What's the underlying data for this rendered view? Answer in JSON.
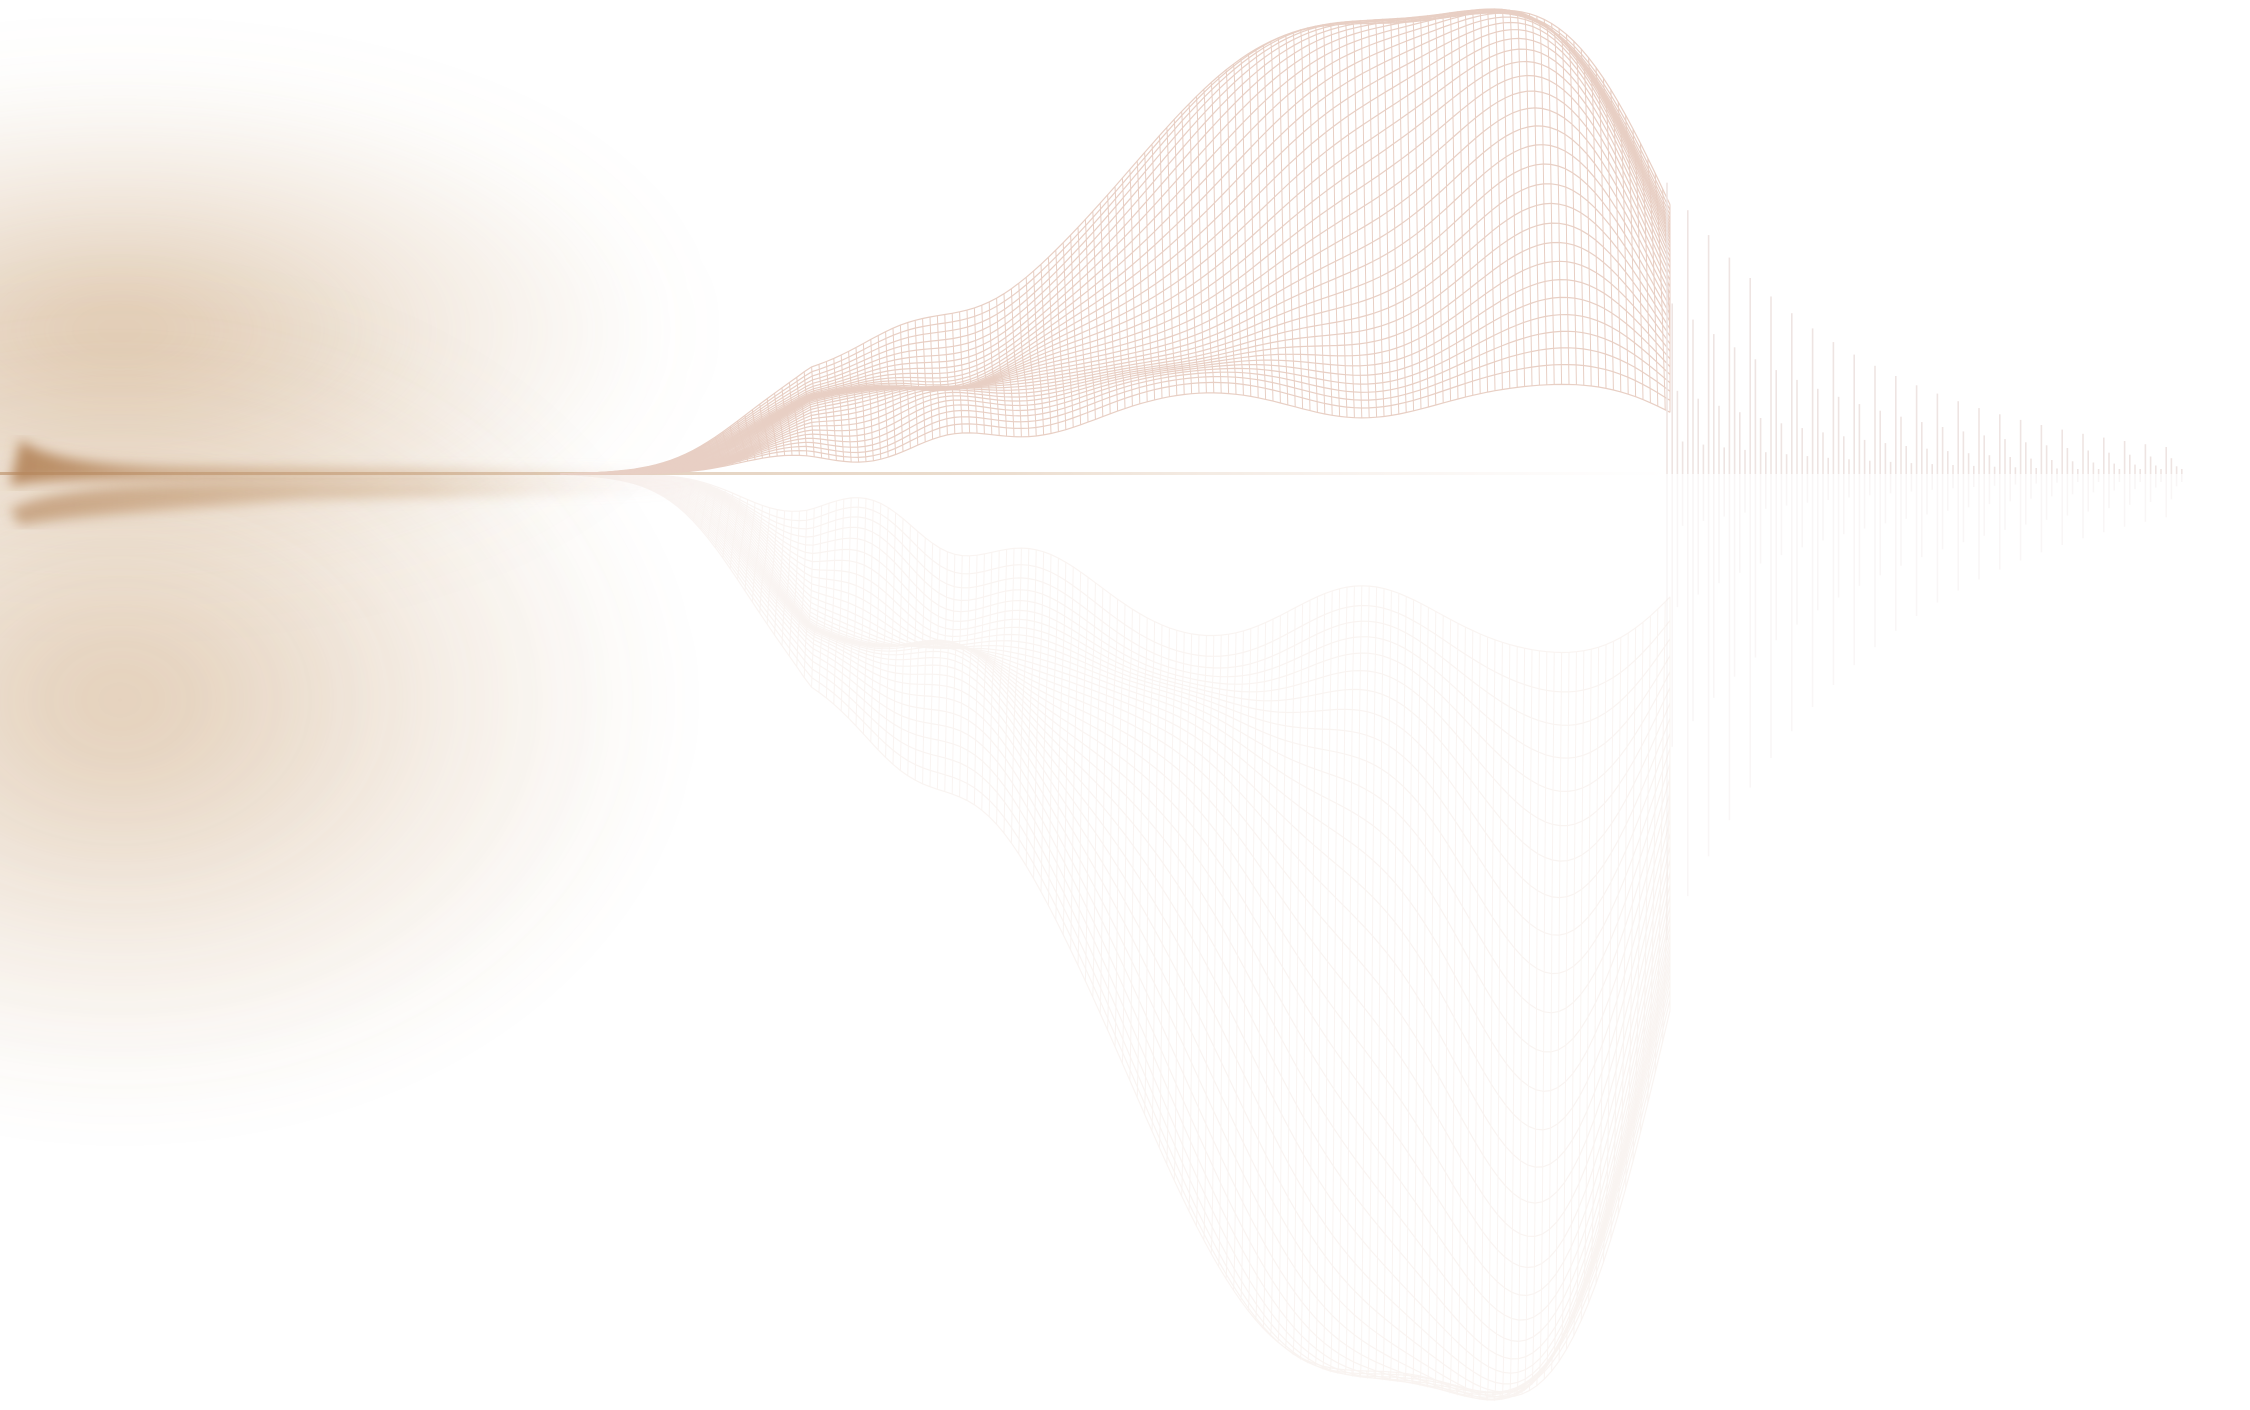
{
  "colors": {
    "background": "#ffffff",
    "glow": "#c49a6c",
    "wireframe": "#e8cfc4",
    "bars": "#eee4e2"
  }
}
